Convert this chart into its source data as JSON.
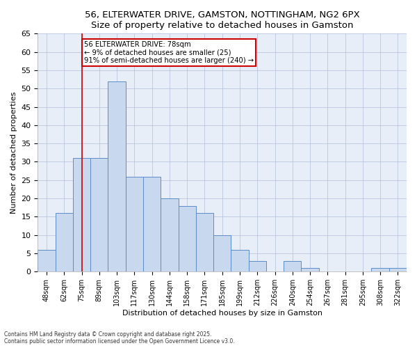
{
  "title": "56, ELTERWATER DRIVE, GAMSTON, NOTTINGHAM, NG2 6PX",
  "subtitle": "Size of property relative to detached houses in Gamston",
  "xlabel": "Distribution of detached houses by size in Gamston",
  "ylabel": "Number of detached properties",
  "categories": [
    "48sqm",
    "62sqm",
    "75sqm",
    "89sqm",
    "103sqm",
    "117sqm",
    "130sqm",
    "144sqm",
    "158sqm",
    "171sqm",
    "185sqm",
    "199sqm",
    "212sqm",
    "226sqm",
    "240sqm",
    "254sqm",
    "267sqm",
    "281sqm",
    "295sqm",
    "308sqm",
    "322sqm"
  ],
  "values": [
    6,
    16,
    31,
    31,
    52,
    26,
    26,
    20,
    18,
    16,
    10,
    6,
    3,
    0,
    3,
    1,
    0,
    0,
    0,
    1,
    1
  ],
  "bar_color": "#c8d9ef",
  "bar_edge_color": "#5b8cc8",
  "ylim": [
    0,
    65
  ],
  "yticks": [
    0,
    5,
    10,
    15,
    20,
    25,
    30,
    35,
    40,
    45,
    50,
    55,
    60,
    65
  ],
  "vline_x_index": 2,
  "vline_color": "#cc0000",
  "annotation_text": "56 ELTERWATER DRIVE: 78sqm\n← 9% of detached houses are smaller (25)\n91% of semi-detached houses are larger (240) →",
  "annotation_box_color": "#cc0000",
  "footer": "Contains HM Land Registry data © Crown copyright and database right 2025.\nContains public sector information licensed under the Open Government Licence v3.0.",
  "background_color": "#ffffff",
  "plot_background": "#e8eef8",
  "grid_color": "#b0bcd8"
}
